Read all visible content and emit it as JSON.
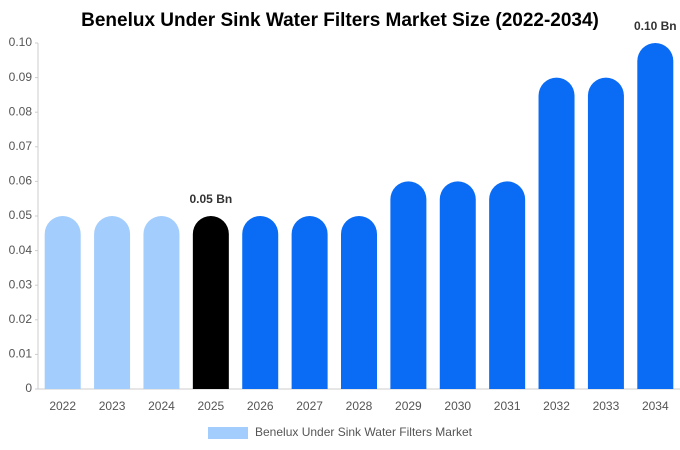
{
  "chart_data": {
    "type": "bar",
    "title": "Benelux Under Sink Water Filters Market Size (2022-2034)",
    "categories": [
      "2022",
      "2023",
      "2024",
      "2025",
      "2026",
      "2027",
      "2028",
      "2029",
      "2030",
      "2031",
      "2032",
      "2033",
      "2034"
    ],
    "series": [
      {
        "name": "Benelux Under Sink Water Filters Market",
        "color": "#a3cdfc",
        "values": [
          0.05,
          0.05,
          0.05,
          0.05,
          0.05,
          0.05,
          0.05,
          0.06,
          0.06,
          0.06,
          0.09,
          0.09,
          0.1
        ],
        "colors": [
          "#a3cdfc",
          "#a3cdfc",
          "#a3cdfc",
          "#000000",
          "#0a6cf5",
          "#0a6cf5",
          "#0a6cf5",
          "#0a6cf5",
          "#0a6cf5",
          "#0a6cf5",
          "#0a6cf5",
          "#0a6cf5",
          "#0a6cf5"
        ],
        "value_labels": [
          null,
          null,
          null,
          "0.05 Bn",
          null,
          null,
          null,
          null,
          null,
          null,
          null,
          null,
          "0.10 Bn"
        ]
      }
    ],
    "ylim": [
      0,
      0.1
    ],
    "yticks": [
      0,
      0.01,
      0.02,
      0.03,
      0.04,
      0.05,
      0.06,
      0.07,
      0.08,
      0.09,
      {
        "value": 0.1,
        "label": "0.10"
      }
    ],
    "grid": false,
    "legend": "bottom"
  }
}
